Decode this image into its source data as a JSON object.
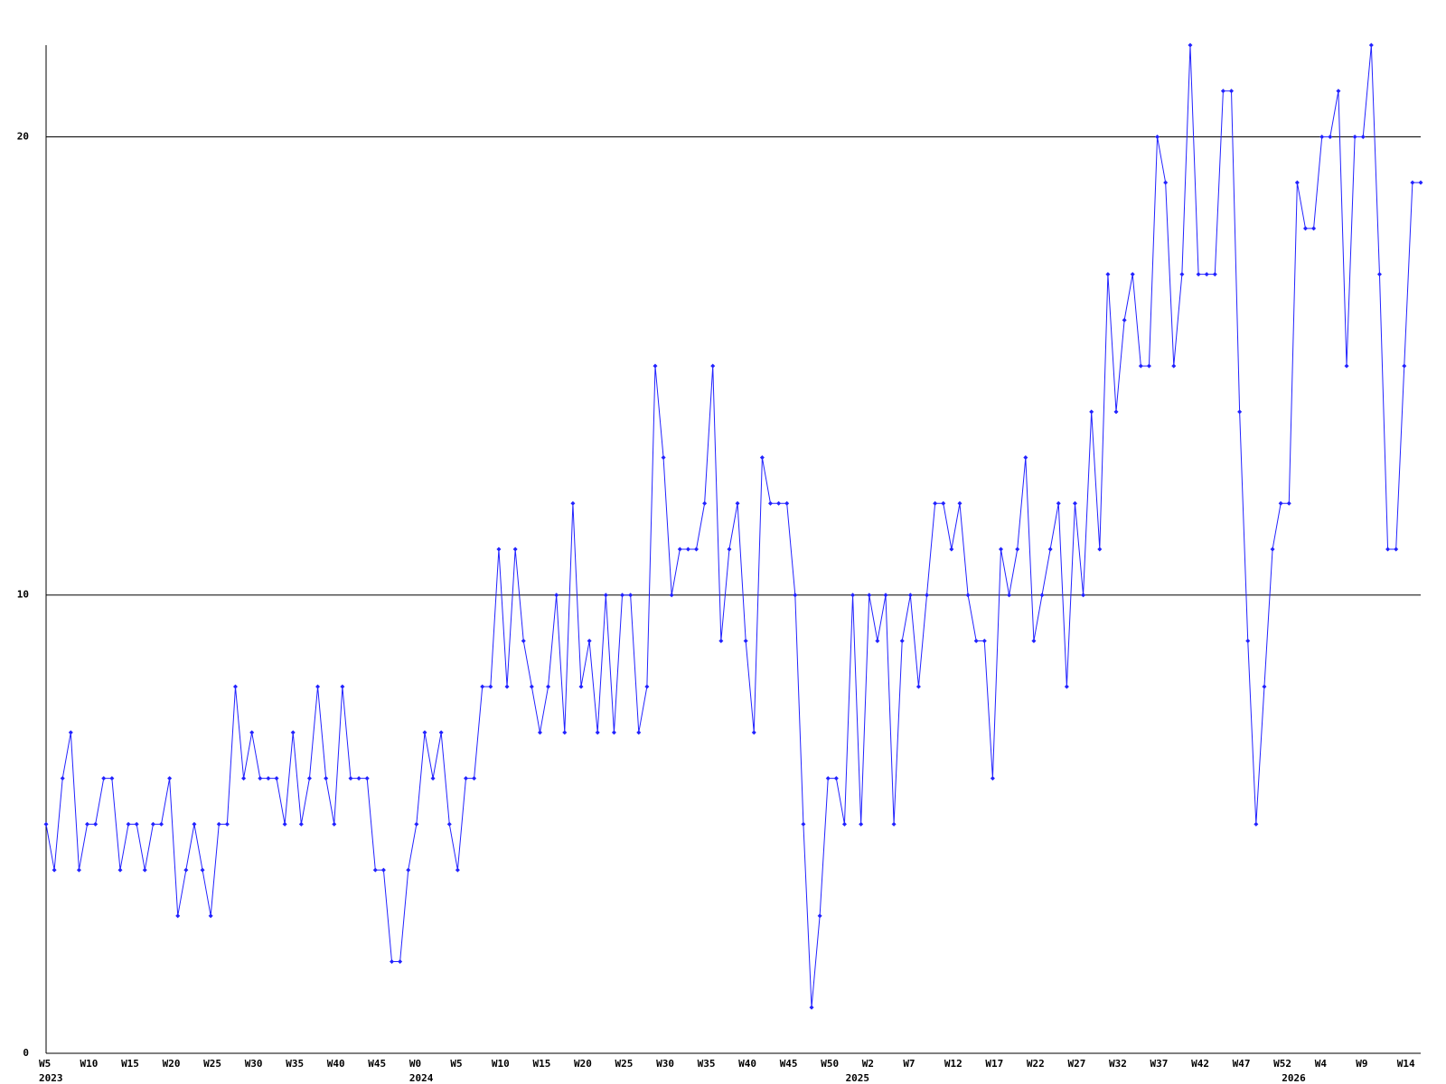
{
  "chart_data": {
    "type": "line",
    "categories": [
      "W5",
      null,
      null,
      null,
      null,
      "W10",
      null,
      null,
      null,
      null,
      "W15",
      null,
      null,
      null,
      null,
      "W20",
      null,
      null,
      null,
      null,
      "W25",
      null,
      null,
      null,
      null,
      "W30",
      null,
      null,
      null,
      null,
      "W35",
      null,
      null,
      null,
      null,
      "W40",
      null,
      null,
      null,
      null,
      "W45",
      null,
      null,
      null,
      null,
      "W0",
      null,
      null,
      null,
      null,
      "W5",
      null,
      null,
      null,
      null,
      "W10",
      null,
      null,
      null,
      null,
      "W15",
      null,
      null,
      null,
      null,
      "W20",
      null,
      null,
      null,
      null,
      "W25",
      null,
      null,
      null,
      null,
      "W30",
      null,
      null,
      null,
      null,
      "W35",
      null,
      null,
      null,
      null,
      "W40",
      null,
      null,
      null,
      null,
      "W45",
      null,
      null,
      null,
      null,
      "W50",
      null,
      null,
      null,
      null,
      "W2",
      null,
      null,
      null,
      null,
      "W7",
      null,
      null,
      null,
      null,
      "W12",
      null,
      null,
      null,
      null,
      "W17",
      null,
      null,
      null,
      null,
      "W22",
      null,
      null,
      null,
      null,
      "W27",
      null,
      null,
      null,
      null,
      "W32",
      null,
      null,
      null,
      null,
      "W37",
      null,
      null,
      null,
      null,
      "W42",
      null,
      null,
      null,
      null,
      "W47",
      null,
      null,
      null,
      null,
      "W52",
      null,
      null,
      null,
      null,
      "W4",
      null,
      null,
      null,
      null,
      "W9",
      null,
      null,
      null,
      null,
      "W14",
      null,
      null
    ],
    "years": [
      "2023",
      null,
      null,
      null,
      null,
      null,
      null,
      null,
      null,
      null,
      null,
      null,
      null,
      null,
      null,
      null,
      null,
      null,
      null,
      null,
      null,
      null,
      null,
      null,
      null,
      null,
      null,
      null,
      null,
      null,
      null,
      null,
      null,
      null,
      null,
      null,
      null,
      null,
      null,
      null,
      null,
      null,
      null,
      null,
      null,
      "2024",
      null,
      null,
      null,
      null,
      null,
      null,
      null,
      null,
      null,
      null,
      null,
      null,
      null,
      null,
      null,
      null,
      null,
      null,
      null,
      null,
      null,
      null,
      null,
      null,
      null,
      null,
      null,
      null,
      null,
      null,
      null,
      null,
      null,
      null,
      null,
      null,
      null,
      null,
      null,
      null,
      null,
      null,
      null,
      null,
      null,
      null,
      null,
      null,
      null,
      null,
      null,
      null,
      "2025",
      null,
      null,
      null,
      null,
      null,
      null,
      null,
      null,
      null,
      null,
      null,
      null,
      null,
      null,
      null,
      null,
      null,
      null,
      null,
      null,
      null,
      null,
      null,
      null,
      null,
      null,
      null,
      null,
      null,
      null,
      null,
      null,
      null,
      null,
      null,
      null,
      null,
      null,
      null,
      null,
      null,
      null,
      null,
      null,
      null,
      null,
      null,
      null,
      null,
      null,
      null,
      null,
      "2026",
      null,
      null,
      null,
      null,
      null,
      null,
      null,
      null,
      null,
      null,
      null,
      null,
      null,
      null,
      null,
      null
    ],
    "values": [
      5,
      4,
      6,
      7,
      4,
      5,
      5,
      6,
      6,
      4,
      5,
      5,
      4,
      5,
      5,
      6,
      3,
      4,
      5,
      4,
      3,
      5,
      5,
      8,
      6,
      7,
      6,
      6,
      6,
      5,
      7,
      5,
      6,
      8,
      6,
      5,
      8,
      6,
      6,
      6,
      4,
      4,
      2,
      2,
      4,
      5,
      7,
      6,
      7,
      5,
      4,
      6,
      6,
      8,
      8,
      11,
      8,
      11,
      9,
      8,
      7,
      8,
      10,
      7,
      12,
      8,
      9,
      7,
      10,
      7,
      10,
      10,
      7,
      8,
      15,
      13,
      10,
      11,
      11,
      11,
      12,
      15,
      9,
      11,
      12,
      9,
      7,
      13,
      12,
      12,
      12,
      10,
      5,
      1,
      3,
      6,
      6,
      5,
      10,
      5,
      10,
      9,
      10,
      5,
      9,
      10,
      8,
      10,
      12,
      12,
      11,
      12,
      10,
      9,
      9,
      6,
      11,
      10,
      11,
      13,
      9,
      10,
      11,
      12,
      8,
      12,
      10,
      14,
      11,
      17,
      14,
      16,
      17,
      15,
      15,
      20,
      19,
      15,
      17,
      22,
      17,
      17,
      17,
      21,
      21,
      14,
      9,
      5,
      8,
      11,
      12,
      12,
      19,
      18,
      18,
      20,
      20,
      21,
      15,
      20,
      20,
      22,
      17,
      11,
      11,
      15,
      19,
      19
    ],
    "color": "#2222ff",
    "ylim": [
      0,
      22
    ],
    "yticks": [
      0,
      10,
      20
    ],
    "grid": true
  }
}
